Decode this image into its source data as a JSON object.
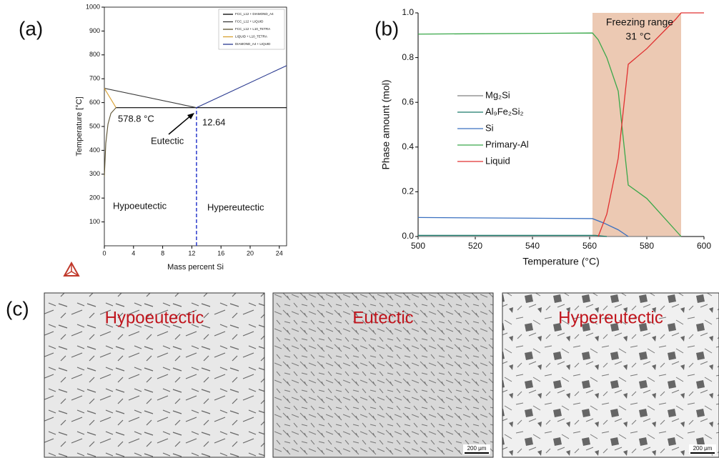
{
  "chart_data": [
    {
      "type": "line",
      "panel_label": "(a)",
      "xlabel": "Mass percent Si",
      "ylabel": "Temperature [°C]",
      "xlim": [
        0,
        25
      ],
      "xticks": [
        0,
        4,
        8,
        12,
        16,
        20,
        24
      ],
      "ylim": [
        0,
        1000
      ],
      "yticks": [
        100,
        200,
        300,
        400,
        500,
        600,
        700,
        800,
        900,
        1000
      ],
      "series": [
        {
          "name": "FCC_L12 + DIAMOND_A4",
          "color": "#000000",
          "x": [
            1.6,
            25
          ],
          "values": [
            578.8,
            578.8
          ]
        },
        {
          "name": "FCC_L12 + LIQUID",
          "color": "#3a3a3a",
          "x": [
            0,
            12.64
          ],
          "values": [
            660,
            578.8
          ]
        },
        {
          "name": "FCC_L12 + L10_TETRA",
          "color": "#5a5030",
          "x": [
            0,
            0.2,
            0.5,
            0.9,
            1.6
          ],
          "values": [
            290,
            430,
            510,
            555,
            578.8
          ]
        },
        {
          "name": "LIQUID + L10_TETRA",
          "color": "#d8a030",
          "x": [
            0,
            1.6
          ],
          "values": [
            660,
            578.8
          ]
        },
        {
          "name": "DIAMOND_A4 + LIQUID",
          "color": "#2a3a90",
          "x": [
            12.64,
            25
          ],
          "values": [
            578.8,
            755
          ]
        }
      ],
      "vline": {
        "x": 12.64,
        "y": 578.8,
        "color": "#2a3acc"
      },
      "annotations": [
        "578.8 °C",
        "12.64",
        "Eutectic",
        "Hypoeutectic",
        "Hypereutectic"
      ]
    },
    {
      "type": "line",
      "panel_label": "(b)",
      "xlabel": "Temperature (°C)",
      "ylabel": "Phase amount (mol)",
      "xlim": [
        500,
        600
      ],
      "xticks": [
        500,
        520,
        540,
        560,
        580,
        600
      ],
      "ylim": [
        0,
        1
      ],
      "yticks": [
        {
          "value": 0,
          "label": "0.0"
        },
        0.2,
        0.4,
        0.6,
        0.8,
        {
          "value": 1,
          "label": "1.0"
        }
      ],
      "shade": [
        561,
        592
      ],
      "shade_color": "#ecc9b3",
      "series": [
        {
          "name": "Mg₂Si",
          "color": "#808080",
          "x": [
            500,
            592
          ],
          "values": [
            0,
            0
          ]
        },
        {
          "name": "Al₉Fe₂Si₂",
          "color": "#1a7a6a",
          "x": [
            500,
            562,
            566
          ],
          "values": [
            0.005,
            0.005,
            0
          ]
        },
        {
          "name": "Si",
          "color": "#3a70c0",
          "x": [
            500,
            561,
            565,
            570,
            573.5
          ],
          "values": [
            0.085,
            0.08,
            0.06,
            0.03,
            0
          ]
        },
        {
          "name": "Primary-Al",
          "color": "#3aa84a",
          "x": [
            500,
            561,
            563,
            566,
            570,
            573.5,
            580,
            592
          ],
          "values": [
            0.905,
            0.91,
            0.88,
            0.8,
            0.65,
            0.23,
            0.17,
            0
          ]
        },
        {
          "name": "Liquid",
          "color": "#e03030",
          "x": [
            563,
            566,
            570,
            573.5,
            580,
            590,
            592,
            600
          ],
          "values": [
            0,
            0.1,
            0.35,
            0.77,
            0.84,
            0.97,
            1,
            1
          ]
        }
      ],
      "annotations": [
        "Freezing range",
        "31 °C"
      ]
    }
  ],
  "micrographs": {
    "panel_label": "(c)",
    "images": [
      {
        "label": "Hypoeutectic"
      },
      {
        "label": "Eutectic",
        "scale_bar": "200 μm"
      },
      {
        "label": "Hypereutectic",
        "scale_bar": "200 μm"
      }
    ]
  }
}
